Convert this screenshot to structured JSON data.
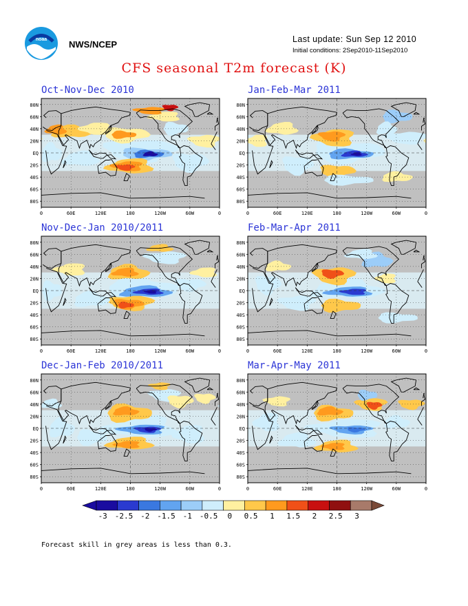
{
  "header": {
    "org": "NWS/NCEP",
    "last_update": "Last update: Sun Sep 12 2010",
    "initial_conditions": "Initial conditions: 2Sep2010-11Sep2010",
    "title": "CFS seasonal T2m forecast (K)"
  },
  "panels": [
    {
      "label": "Oct-Nov-Dec 2010"
    },
    {
      "label": "Jan-Feb-Mar 2011"
    },
    {
      "label": "Nov-Dec-Jan 2010/2011"
    },
    {
      "label": "Feb-Mar-Apr 2011"
    },
    {
      "label": "Dec-Jan-Feb 2010/2011"
    },
    {
      "label": "Mar-Apr-May 2011"
    }
  ],
  "axes": {
    "lat_labels": [
      "80N",
      "60N",
      "40N",
      "20N",
      "EQ",
      "20S",
      "40S",
      "60S",
      "80S"
    ],
    "lon_labels": [
      "0",
      "60E",
      "120E",
      "180",
      "120W",
      "60W",
      "0"
    ]
  },
  "colorbar": {
    "labels": [
      "-3",
      "-2.5",
      "-2",
      "-1.5",
      "-1",
      "-0.5",
      "0",
      "0.5",
      "1",
      "1.5",
      "2",
      "2.5",
      "3"
    ],
    "colors": [
      "#1a0ca0",
      "#2a3ad0",
      "#3a78e0",
      "#62a4f0",
      "#9ccdf8",
      "#cfeefc",
      "#fff0a0",
      "#ffc84a",
      "#ff9a1e",
      "#f05018",
      "#c81010",
      "#901010",
      "#a87a6a"
    ]
  },
  "footer": "Forecast skill in grey areas is less than 0.3."
}
